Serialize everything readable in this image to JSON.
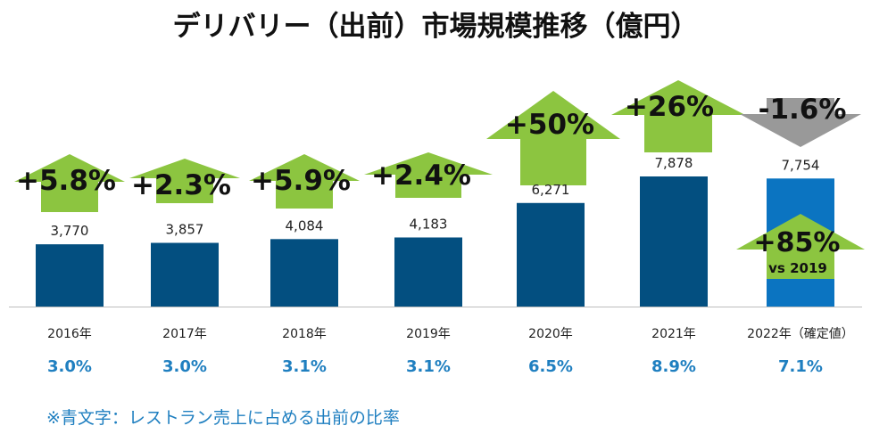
{
  "chart_data": {
    "type": "bar",
    "title": "デリバリー（出前）市場規模推移（億円）",
    "xlabel": "",
    "ylabel": "",
    "ylim": [
      0,
      11000
    ],
    "grid": false,
    "categories": [
      "2016年",
      "2017年",
      "2018年",
      "2019年",
      "2020年",
      "2021年",
      "2022年（確定値）"
    ],
    "values": [
      3770,
      3857,
      4084,
      4183,
      6271,
      7878,
      7754
    ],
    "value_labels": [
      "3,770",
      "3,857",
      "4,084",
      "4,183",
      "6,271",
      "7,878",
      "7,754"
    ],
    "growth_labels": [
      "+5.8%",
      "+2.3%",
      "+5.9%",
      "+2.4%",
      "+50%",
      "+26%",
      "-1.6%"
    ],
    "growth_direction": [
      "up",
      "up",
      "up",
      "up",
      "up",
      "up",
      "down"
    ],
    "restaurant_share": [
      "3.0%",
      "3.0%",
      "3.1%",
      "3.1%",
      "6.5%",
      "8.9%",
      "7.1%"
    ],
    "annotation": {
      "label": "+85%",
      "sub": "vs 2019",
      "category": "2022年（確定値）"
    },
    "bar_colors": [
      "#034f80",
      "#034f80",
      "#034f80",
      "#034f80",
      "#034f80",
      "#034f80",
      "#0b74c1"
    ],
    "arrow_up_color": "#8cc540",
    "arrow_down_color": "#999999",
    "share_color": "#1f7fc0"
  },
  "footnote": "※青文字：レストラン売上に占める出前の比率"
}
